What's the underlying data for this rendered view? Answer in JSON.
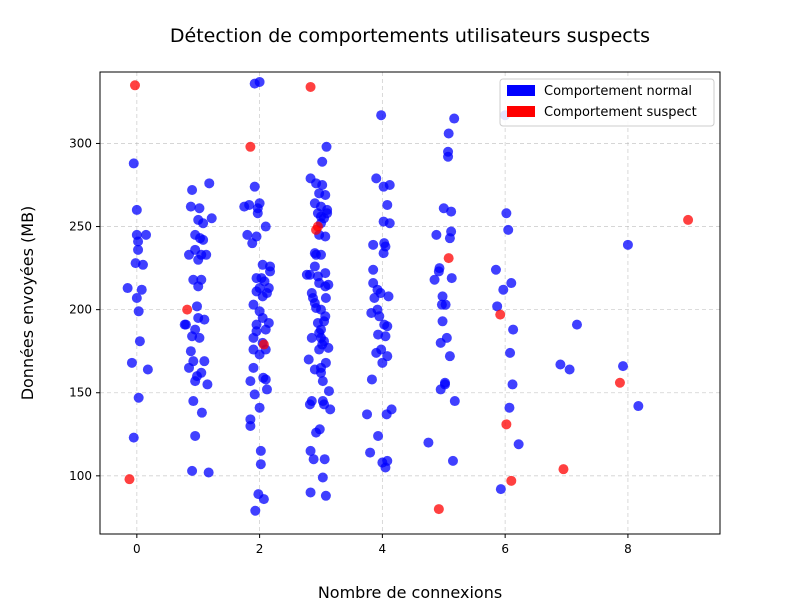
{
  "chart_data": {
    "type": "scatter",
    "title": "Détection de comportements utilisateurs suspects",
    "xlabel": "Nombre de connexions",
    "ylabel": "Données envoyées (MB)",
    "xlim": [
      -0.6,
      9.5
    ],
    "ylim": [
      65,
      343
    ],
    "xticks": [
      0,
      2,
      4,
      6,
      8
    ],
    "yticks": [
      100,
      150,
      200,
      250,
      300
    ],
    "grid": true,
    "legend_position": "top-right",
    "series": [
      {
        "name": "Comportement normal",
        "color": "#0000ff",
        "points": [
          [
            -0.15,
            213
          ],
          [
            -0.08,
            168
          ],
          [
            -0.05,
            288
          ],
          [
            -0.05,
            123
          ],
          [
            -0.02,
            228
          ],
          [
            0.0,
            207
          ],
          [
            0.0,
            260
          ],
          [
            0.0,
            245
          ],
          [
            0.02,
            241
          ],
          [
            0.02,
            236
          ],
          [
            0.03,
            199
          ],
          [
            0.03,
            147
          ],
          [
            0.05,
            181
          ],
          [
            0.08,
            212
          ],
          [
            0.1,
            227
          ],
          [
            0.15,
            245
          ],
          [
            0.18,
            164
          ],
          [
            0.78,
            191
          ],
          [
            0.8,
            191
          ],
          [
            0.85,
            165
          ],
          [
            0.85,
            233
          ],
          [
            0.88,
            262
          ],
          [
            0.88,
            175
          ],
          [
            0.9,
            184
          ],
          [
            0.9,
            103
          ],
          [
            0.9,
            272
          ],
          [
            0.92,
            218
          ],
          [
            0.92,
            169
          ],
          [
            0.92,
            145
          ],
          [
            0.95,
            124
          ],
          [
            0.95,
            245
          ],
          [
            0.95,
            236
          ],
          [
            0.95,
            188
          ],
          [
            0.95,
            157
          ],
          [
            0.98,
            202
          ],
          [
            0.98,
            160
          ],
          [
            1.0,
            195
          ],
          [
            1.0,
            254
          ],
          [
            1.0,
            230
          ],
          [
            1.0,
            214
          ],
          [
            1.02,
            261
          ],
          [
            1.02,
            183
          ],
          [
            1.03,
            243
          ],
          [
            1.05,
            233
          ],
          [
            1.05,
            218
          ],
          [
            1.05,
            162
          ],
          [
            1.06,
            138
          ],
          [
            1.08,
            252
          ],
          [
            1.08,
            242
          ],
          [
            1.1,
            169
          ],
          [
            1.1,
            194
          ],
          [
            1.13,
            233
          ],
          [
            1.15,
            155
          ],
          [
            1.17,
            102
          ],
          [
            1.18,
            276
          ],
          [
            1.22,
            255
          ],
          [
            1.75,
            262
          ],
          [
            1.8,
            245
          ],
          [
            1.83,
            263
          ],
          [
            1.85,
            134
          ],
          [
            1.85,
            130
          ],
          [
            1.85,
            157
          ],
          [
            1.88,
            240
          ],
          [
            1.9,
            203
          ],
          [
            1.9,
            183
          ],
          [
            1.9,
            176
          ],
          [
            1.9,
            165
          ],
          [
            1.92,
            336
          ],
          [
            1.92,
            274
          ],
          [
            1.92,
            149
          ],
          [
            1.93,
            79
          ],
          [
            1.95,
            244
          ],
          [
            1.95,
            219
          ],
          [
            1.95,
            211
          ],
          [
            1.95,
            191
          ],
          [
            1.95,
            187
          ],
          [
            1.97,
            261
          ],
          [
            1.97,
            258
          ],
          [
            1.98,
            89
          ],
          [
            2.0,
            337
          ],
          [
            2.0,
            264
          ],
          [
            2.0,
            213
          ],
          [
            2.0,
            199
          ],
          [
            2.0,
            173
          ],
          [
            2.0,
            141
          ],
          [
            2.02,
            115
          ],
          [
            2.02,
            107
          ],
          [
            2.03,
            219
          ],
          [
            2.05,
            227
          ],
          [
            2.05,
            208
          ],
          [
            2.05,
            195
          ],
          [
            2.05,
            180
          ],
          [
            2.06,
            159
          ],
          [
            2.07,
            86
          ],
          [
            2.08,
            217
          ],
          [
            2.1,
            250
          ],
          [
            2.1,
            188
          ],
          [
            2.1,
            176
          ],
          [
            2.1,
            158
          ],
          [
            2.12,
            210
          ],
          [
            2.12,
            152
          ],
          [
            2.15,
            213
          ],
          [
            2.15,
            192
          ],
          [
            2.17,
            226
          ],
          [
            2.17,
            223
          ],
          [
            2.77,
            221
          ],
          [
            2.8,
            170
          ],
          [
            2.82,
            221
          ],
          [
            2.82,
            143
          ],
          [
            2.83,
            279
          ],
          [
            2.83,
            115
          ],
          [
            2.83,
            90
          ],
          [
            2.85,
            183
          ],
          [
            2.85,
            145
          ],
          [
            2.85,
            210
          ],
          [
            2.87,
            207
          ],
          [
            2.88,
            110
          ],
          [
            2.9,
            264
          ],
          [
            2.9,
            234
          ],
          [
            2.9,
            226
          ],
          [
            2.9,
            204
          ],
          [
            2.9,
            164
          ],
          [
            2.92,
            276
          ],
          [
            2.92,
            233
          ],
          [
            2.92,
            201
          ],
          [
            2.92,
            126
          ],
          [
            2.95,
            258
          ],
          [
            2.95,
            220
          ],
          [
            2.95,
            192
          ],
          [
            2.97,
            270
          ],
          [
            2.97,
            245
          ],
          [
            2.97,
            216
          ],
          [
            2.97,
            186
          ],
          [
            2.97,
            176
          ],
          [
            2.98,
            128
          ],
          [
            3.0,
            262
          ],
          [
            3.0,
            256
          ],
          [
            3.0,
            252
          ],
          [
            3.0,
            233
          ],
          [
            3.0,
            200
          ],
          [
            3.0,
            188
          ],
          [
            3.0,
            183
          ],
          [
            3.0,
            165
          ],
          [
            3.0,
            162
          ],
          [
            3.02,
            289
          ],
          [
            3.02,
            275
          ],
          [
            3.02,
            179
          ],
          [
            3.03,
            99
          ],
          [
            3.03,
            145
          ],
          [
            3.03,
            157
          ],
          [
            3.05,
            255
          ],
          [
            3.05,
            193
          ],
          [
            3.05,
            181
          ],
          [
            3.05,
            143
          ],
          [
            3.06,
            110
          ],
          [
            3.07,
            269
          ],
          [
            3.07,
            244
          ],
          [
            3.07,
            222
          ],
          [
            3.07,
            214
          ],
          [
            3.07,
            196
          ],
          [
            3.08,
            88
          ],
          [
            3.08,
            207
          ],
          [
            3.08,
            168
          ],
          [
            3.09,
            298
          ],
          [
            3.1,
            258
          ],
          [
            3.1,
            260
          ],
          [
            3.12,
            215
          ],
          [
            3.12,
            177
          ],
          [
            3.13,
            151
          ],
          [
            3.15,
            140
          ],
          [
            3.75,
            137
          ],
          [
            3.8,
            114
          ],
          [
            3.82,
            198
          ],
          [
            3.83,
            158
          ],
          [
            3.85,
            239
          ],
          [
            3.85,
            224
          ],
          [
            3.85,
            216
          ],
          [
            3.87,
            207
          ],
          [
            3.9,
            279
          ],
          [
            3.9,
            174
          ],
          [
            3.92,
            212
          ],
          [
            3.92,
            200
          ],
          [
            3.93,
            185
          ],
          [
            3.93,
            124
          ],
          [
            3.95,
            196
          ],
          [
            3.97,
            210
          ],
          [
            3.98,
            317
          ],
          [
            3.98,
            176
          ],
          [
            4.0,
            168
          ],
          [
            4.0,
            108
          ],
          [
            4.02,
            274
          ],
          [
            4.02,
            253
          ],
          [
            4.02,
            234
          ],
          [
            4.03,
            240
          ],
          [
            4.03,
            191
          ],
          [
            4.05,
            238
          ],
          [
            4.05,
            184
          ],
          [
            4.05,
            105
          ],
          [
            4.07,
            137
          ],
          [
            4.08,
            263
          ],
          [
            4.08,
            190
          ],
          [
            4.08,
            172
          ],
          [
            4.08,
            109
          ],
          [
            4.1,
            208
          ],
          [
            4.12,
            275
          ],
          [
            4.12,
            252
          ],
          [
            4.15,
            140
          ],
          [
            4.75,
            120
          ],
          [
            4.85,
            218
          ],
          [
            4.88,
            245
          ],
          [
            4.92,
            223
          ],
          [
            4.93,
            225
          ],
          [
            4.95,
            180
          ],
          [
            4.95,
            152
          ],
          [
            4.97,
            203
          ],
          [
            4.98,
            208
          ],
          [
            4.98,
            193
          ],
          [
            5.0,
            261
          ],
          [
            5.02,
            156
          ],
          [
            5.02,
            155
          ],
          [
            5.03,
            203
          ],
          [
            5.05,
            183
          ],
          [
            5.07,
            295
          ],
          [
            5.07,
            292
          ],
          [
            5.08,
            306
          ],
          [
            5.1,
            243
          ],
          [
            5.1,
            172
          ],
          [
            5.12,
            247
          ],
          [
            5.12,
            259
          ],
          [
            5.13,
            219
          ],
          [
            5.15,
            109
          ],
          [
            5.17,
            315
          ],
          [
            5.18,
            145
          ],
          [
            5.85,
            224
          ],
          [
            5.87,
            202
          ],
          [
            5.93,
            92
          ],
          [
            5.97,
            212
          ],
          [
            6.0,
            317
          ],
          [
            6.02,
            258
          ],
          [
            6.05,
            248
          ],
          [
            6.07,
            141
          ],
          [
            6.08,
            174
          ],
          [
            6.1,
            216
          ],
          [
            6.12,
            155
          ],
          [
            6.13,
            188
          ],
          [
            6.22,
            119
          ],
          [
            6.9,
            167
          ],
          [
            7.05,
            164
          ],
          [
            7.17,
            191
          ],
          [
            7.92,
            166
          ],
          [
            8.0,
            239
          ],
          [
            8.17,
            142
          ]
        ]
      },
      {
        "name": "Comportement suspect",
        "color": "#ff0000",
        "points": [
          [
            -0.12,
            98
          ],
          [
            -0.03,
            335
          ],
          [
            0.82,
            200
          ],
          [
            1.85,
            298
          ],
          [
            2.07,
            179
          ],
          [
            2.83,
            334
          ],
          [
            2.92,
            248
          ],
          [
            2.95,
            250
          ],
          [
            4.92,
            80
          ],
          [
            5.08,
            231
          ],
          [
            5.92,
            197
          ],
          [
            6.02,
            131
          ],
          [
            6.1,
            97
          ],
          [
            6.95,
            104
          ],
          [
            7.87,
            156
          ],
          [
            8.98,
            254
          ]
        ]
      }
    ]
  }
}
